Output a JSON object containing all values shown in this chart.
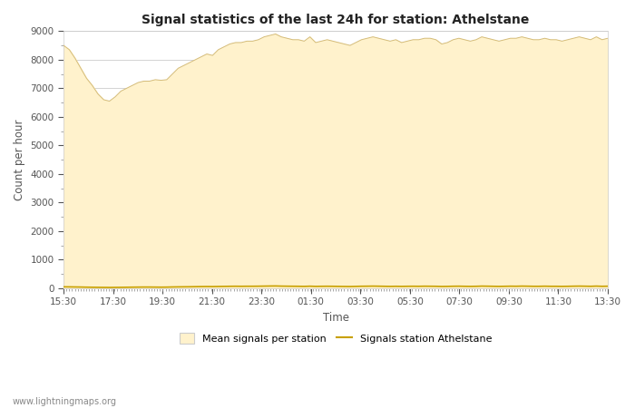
{
  "title": "Signal statistics of the last 24h for station: Athelstane",
  "xlabel": "Time",
  "ylabel": "Count per hour",
  "ylim": [
    0,
    9000
  ],
  "yticks": [
    0,
    1000,
    2000,
    3000,
    4000,
    5000,
    6000,
    7000,
    8000,
    9000
  ],
  "xtick_labels": [
    "15:30",
    "17:30",
    "19:30",
    "21:30",
    "23:30",
    "01:30",
    "03:30",
    "05:30",
    "07:30",
    "09:30",
    "11:30",
    "13:30"
  ],
  "fill_color": "#FFF2CC",
  "line_color": "#C8A000",
  "background_color": "#FFFFFF",
  "watermark": "www.lightningmaps.org",
  "mean_values": [
    8500,
    8350,
    8050,
    7700,
    7350,
    7100,
    6800,
    6600,
    6550,
    6700,
    6900,
    7000,
    7100,
    7200,
    7250,
    7250,
    7300,
    7280,
    7300,
    7500,
    7700,
    7800,
    7900,
    8000,
    8100,
    8200,
    8150,
    8350,
    8450,
    8550,
    8600,
    8600,
    8650,
    8650,
    8700,
    8800,
    8850,
    8900,
    8800,
    8750,
    8700,
    8700,
    8650,
    8800,
    8600,
    8650,
    8700,
    8650,
    8600,
    8550,
    8500,
    8600,
    8700,
    8750,
    8800,
    8750,
    8700,
    8650,
    8700,
    8600,
    8650,
    8700,
    8700,
    8750,
    8750,
    8700,
    8550,
    8600,
    8700,
    8750,
    8700,
    8650,
    8700,
    8800,
    8750,
    8700,
    8650,
    8700,
    8750,
    8750,
    8800,
    8750,
    8700,
    8700,
    8750,
    8700,
    8700,
    8650,
    8700,
    8750,
    8800,
    8750,
    8700,
    8800,
    8700,
    8750
  ],
  "station_values": [
    50,
    48,
    45,
    42,
    38,
    35,
    32,
    30,
    28,
    30,
    32,
    35,
    38,
    40,
    42,
    42,
    40,
    38,
    40,
    45,
    48,
    50,
    52,
    55,
    58,
    60,
    58,
    62,
    65,
    68,
    70,
    68,
    70,
    70,
    72,
    75,
    78,
    80,
    75,
    72,
    70,
    68,
    65,
    72,
    65,
    68,
    70,
    68,
    65,
    62,
    60,
    65,
    70,
    72,
    75,
    72,
    68,
    65,
    68,
    65,
    68,
    70,
    68,
    72,
    70,
    68,
    62,
    65,
    70,
    72,
    68,
    65,
    68,
    75,
    72,
    68,
    65,
    68,
    72,
    70,
    75,
    72,
    68,
    68,
    72,
    68,
    68,
    65,
    68,
    72,
    75,
    72,
    68,
    75,
    68,
    72
  ]
}
